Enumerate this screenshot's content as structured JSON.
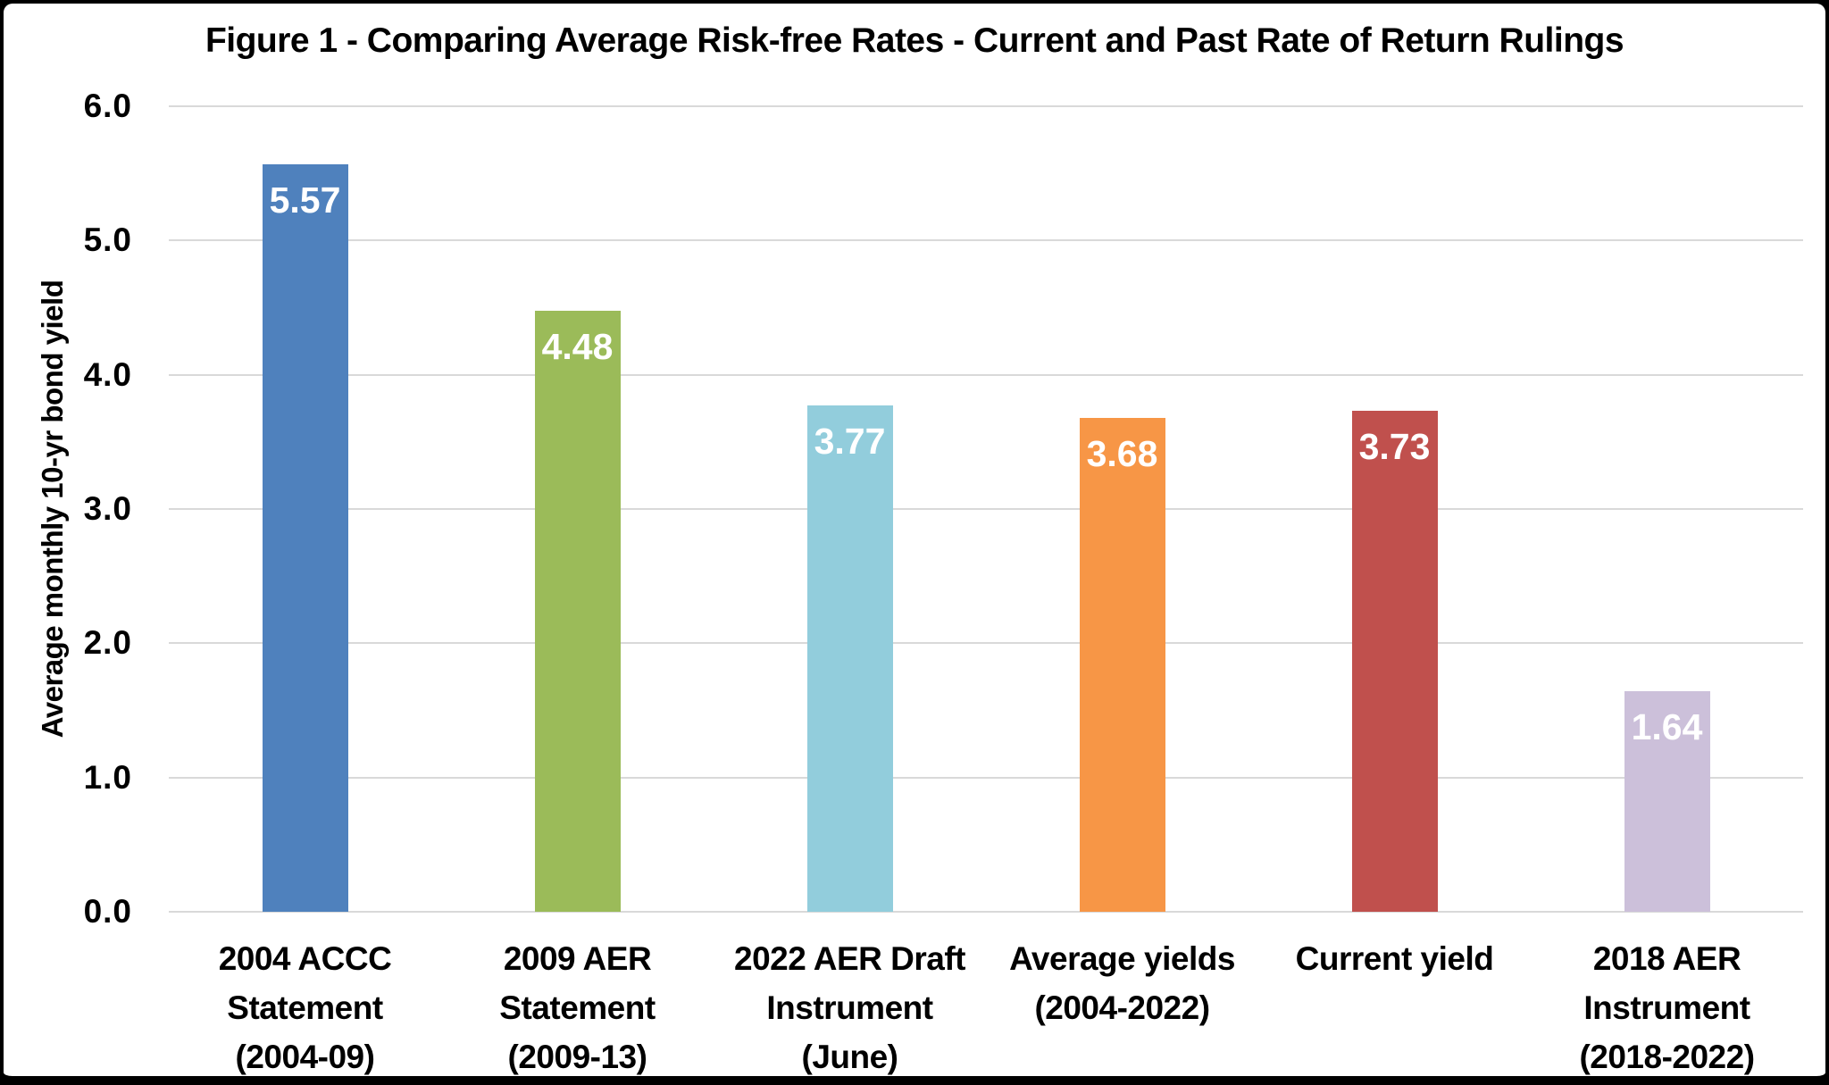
{
  "chart_data": {
    "type": "bar",
    "title": "Figure 1 - Comparing Average Risk-free Rates - Current and Past Rate of Return Rulings",
    "ylabel": "Average monthly 10-yr bond yield",
    "xlabel": "",
    "ylim": [
      0,
      6
    ],
    "yticks": [
      {
        "value": 0,
        "label": "0.0"
      },
      {
        "value": 1,
        "label": "1.0"
      },
      {
        "value": 2,
        "label": "2.0"
      },
      {
        "value": 3,
        "label": "3.0"
      },
      {
        "value": 4,
        "label": "4.0"
      },
      {
        "value": 5,
        "label": "5.0"
      },
      {
        "value": 6,
        "label": "6.0"
      }
    ],
    "grid": "horizontal",
    "legend": "none",
    "categories": [
      [
        "2004 ACCC",
        "Statement",
        "(2004-09)"
      ],
      [
        "2009 AER",
        "Statement",
        "(2009-13)"
      ],
      [
        "2022 AER Draft",
        "Instrument",
        "(June)"
      ],
      [
        "Average yields",
        "(2004-2022)"
      ],
      [
        "Current yield"
      ],
      [
        "2018 AER",
        "Instrument",
        "(2018-2022)"
      ]
    ],
    "values": [
      5.57,
      4.48,
      3.77,
      3.68,
      3.73,
      1.64
    ],
    "value_labels": [
      "5.57",
      "4.48",
      "3.77",
      "3.68",
      "3.73",
      "1.64"
    ],
    "bar_colors": [
      "#4F81BD",
      "#9BBB59",
      "#92CDDC",
      "#F79646",
      "#C0504D",
      "#CCC0DA"
    ],
    "value_label_color": "#FFFFFF",
    "gridline_color": "#D9D9D9",
    "text_color": "#000000",
    "background_color": "#FFFFFF",
    "border_color": "#000000"
  }
}
